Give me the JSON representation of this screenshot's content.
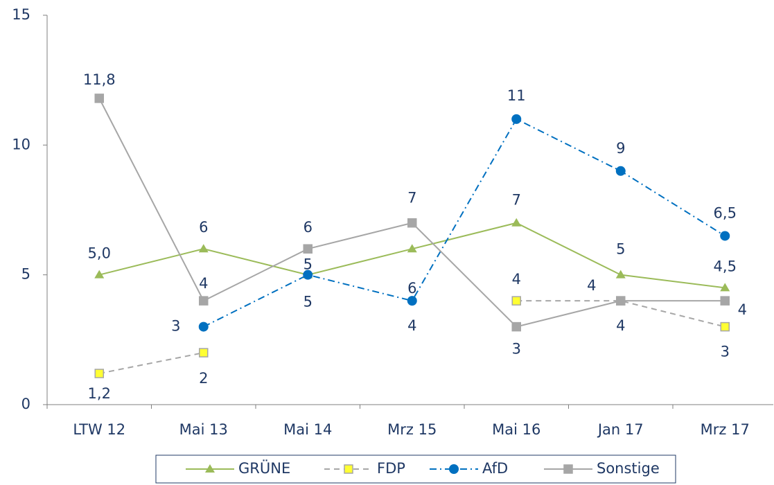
{
  "chart_data": {
    "type": "line",
    "categories": [
      "LTW 12",
      "Mai 13",
      "Mai 14",
      "Mrz 15",
      "Mai 16",
      "Jan 17",
      "Mrz 17"
    ],
    "ylim": [
      0,
      15
    ],
    "yticks": [
      0,
      5,
      10,
      15
    ],
    "grid": false,
    "legend": "bottom",
    "series": [
      {
        "name": "GRÜNE",
        "color": "#9bbb59",
        "marker": "triangle",
        "dash": "solid",
        "values": [
          5.0,
          6,
          5,
          6,
          7,
          5,
          4.5
        ],
        "value_labels": [
          "5,0",
          "6",
          "5",
          "6",
          "7",
          "5",
          "4,5"
        ]
      },
      {
        "name": "FDP",
        "color": "#ffff33",
        "line_color": "#a6a6a6",
        "marker": "square",
        "dash": "dash",
        "values": [
          1.2,
          2,
          null,
          null,
          4,
          4,
          3
        ],
        "value_labels": [
          "1,2",
          "2",
          null,
          null,
          "4",
          "4",
          "3"
        ]
      },
      {
        "name": "AfD",
        "color": "#0070c0",
        "marker": "circle",
        "dash": "dashdot",
        "values": [
          null,
          3,
          5,
          4,
          11,
          9,
          6.5
        ],
        "value_labels": [
          null,
          "3",
          "5",
          "4",
          "11",
          "9",
          "6,5"
        ]
      },
      {
        "name": "Sonstige",
        "color": "#a6a6a6",
        "marker": "square",
        "dash": "solid",
        "values": [
          11.8,
          4,
          6,
          7,
          3,
          4,
          4
        ],
        "value_labels": [
          "11,8",
          "4",
          "6",
          "7",
          "3",
          "4",
          "4"
        ]
      }
    ]
  }
}
